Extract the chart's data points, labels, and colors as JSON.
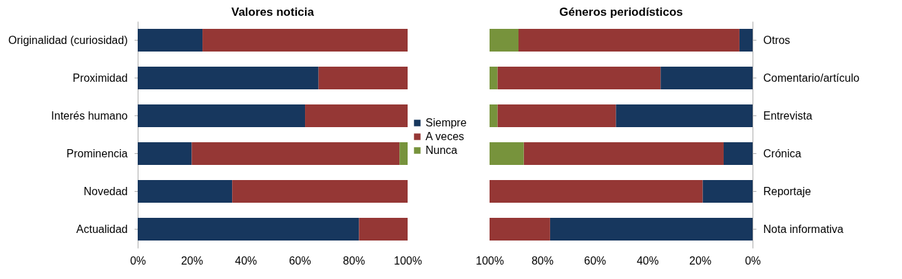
{
  "chart_data": [
    {
      "type": "bar",
      "title": "Valores noticia",
      "orientation": "horizontal",
      "stacked": true,
      "legend": "right",
      "categories": [
        "Originalidad (curiosidad)",
        "Proximidad",
        "Interés humano",
        "Prominencia",
        "Novedad",
        "Actualidad"
      ],
      "series": [
        {
          "name": "Siempre",
          "color": "#17375e",
          "values": [
            24,
            67,
            62,
            20,
            35,
            82
          ]
        },
        {
          "name": "A veces",
          "color": "#953735",
          "values": [
            76,
            33,
            38,
            77,
            65,
            18
          ]
        },
        {
          "name": "Nunca",
          "color": "#77933c",
          "values": [
            0,
            0,
            0,
            3,
            0,
            0
          ]
        }
      ],
      "xlim": [
        0,
        100
      ],
      "xticks": [
        {
          "value": 0,
          "label": "0%"
        },
        {
          "value": 20,
          "label": "20%"
        },
        {
          "value": 40,
          "label": "40%"
        },
        {
          "value": 60,
          "label": "60%"
        },
        {
          "value": 80,
          "label": "80%"
        },
        {
          "value": 100,
          "label": "100%"
        }
      ]
    },
    {
      "type": "bar",
      "title": "Géneros periodísticos",
      "orientation": "horizontal",
      "stacked": true,
      "categories": [
        "Otros",
        "Comentario/artículo",
        "Entrevista",
        "Crónica",
        "Reportaje",
        "Nota informativa"
      ],
      "series": [
        {
          "color": "#17375e",
          "values": [
            5,
            35,
            52,
            11,
            19,
            77
          ]
        },
        {
          "color": "#953735",
          "values": [
            84,
            62,
            45,
            76,
            81,
            23
          ]
        },
        {
          "color": "#77933c",
          "values": [
            11,
            3,
            3,
            13,
            0,
            0
          ]
        }
      ],
      "xlim": [
        100,
        0
      ],
      "xticks": [
        {
          "value": 100,
          "label": "100%"
        },
        {
          "value": 80,
          "label": "80%"
        },
        {
          "value": 60,
          "label": "60%"
        },
        {
          "value": 40,
          "label": "40%"
        },
        {
          "value": 20,
          "label": "20%"
        },
        {
          "value": 0,
          "label": "0%"
        }
      ]
    }
  ]
}
